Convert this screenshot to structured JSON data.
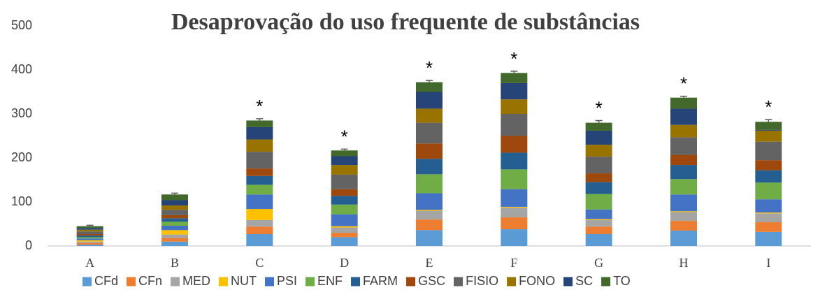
{
  "chart_data": {
    "type": "stacked_bar",
    "title": "Desaprovação do uso frequente de substâncias",
    "categories": [
      "A",
      "B",
      "C",
      "D",
      "E",
      "F",
      "G",
      "H",
      "I"
    ],
    "series": [
      {
        "name": "CFd",
        "color": "#5b9bd5",
        "values": [
          3,
          10,
          27,
          20,
          36,
          38,
          27,
          35,
          32
        ]
      },
      {
        "name": "CFn",
        "color": "#ed7d31",
        "values": [
          4,
          8,
          17,
          10,
          24,
          27,
          17,
          22,
          22
        ]
      },
      {
        "name": "MED",
        "color": "#a5a5a5",
        "values": [
          3,
          8,
          15,
          12,
          20,
          22,
          15,
          20,
          20
        ]
      },
      {
        "name": "NUT",
        "color": "#ffc000",
        "values": [
          3,
          10,
          25,
          3,
          2,
          2,
          2,
          2,
          2
        ]
      },
      {
        "name": "PSI",
        "color": "#4472c4",
        "values": [
          4,
          10,
          33,
          27,
          38,
          40,
          22,
          38,
          30
        ]
      },
      {
        "name": "ENF",
        "color": "#70ad47",
        "values": [
          3,
          9,
          22,
          22,
          43,
          45,
          35,
          35,
          38
        ]
      },
      {
        "name": "FARM",
        "color": "#255e91",
        "values": [
          4,
          8,
          20,
          20,
          35,
          38,
          27,
          32,
          28
        ]
      },
      {
        "name": "GSC",
        "color": "#9e480e",
        "values": [
          3,
          7,
          17,
          15,
          35,
          38,
          20,
          23,
          23
        ]
      },
      {
        "name": "FISIO",
        "color": "#636363",
        "values": [
          6,
          12,
          38,
          33,
          47,
          50,
          38,
          40,
          42
        ]
      },
      {
        "name": "FONO",
        "color": "#997300",
        "values": [
          4,
          10,
          28,
          22,
          32,
          33,
          27,
          28,
          25
        ]
      },
      {
        "name": "SC",
        "color": "#264478",
        "values": [
          4,
          12,
          28,
          20,
          38,
          37,
          32,
          37,
          2
        ]
      },
      {
        "name": "TO",
        "color": "#43682b",
        "values": [
          4,
          13,
          15,
          13,
          22,
          23,
          18,
          25,
          18
        ]
      }
    ],
    "errors": [
      2,
      3,
      4,
      3,
      4,
      4,
      5,
      3,
      5
    ],
    "annotations": [
      {
        "category": "C",
        "text": "*"
      },
      {
        "category": "D",
        "text": "*"
      },
      {
        "category": "E",
        "text": "*"
      },
      {
        "category": "F",
        "text": "*"
      },
      {
        "category": "G",
        "text": "*"
      },
      {
        "category": "H",
        "text": "*"
      },
      {
        "category": "I",
        "text": "*"
      }
    ],
    "ylim": [
      0,
      500
    ],
    "yticks": [
      0,
      100,
      200,
      300,
      400,
      500
    ],
    "legend": "bottom"
  }
}
